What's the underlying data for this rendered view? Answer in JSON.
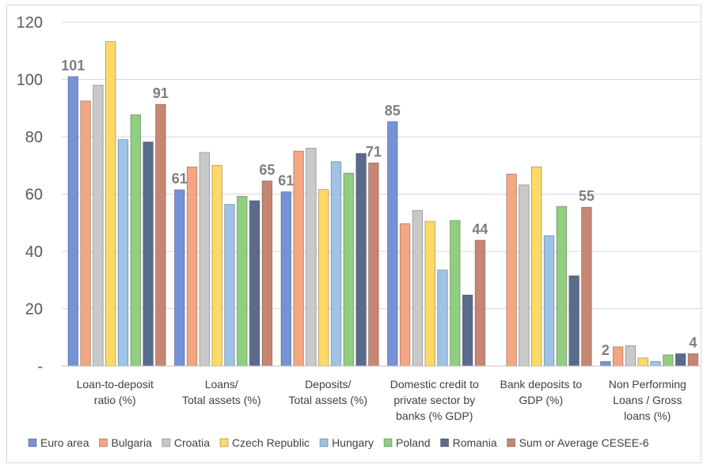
{
  "chart_data": {
    "type": "bar",
    "title": "",
    "xlabel": "",
    "ylabel": "",
    "ylim": [
      0,
      120
    ],
    "ytick_values": [
      0,
      20,
      40,
      60,
      80,
      100,
      120
    ],
    "ytick_labels": [
      "-",
      "20",
      "40",
      "60",
      "80",
      "100",
      "120"
    ],
    "grid": "horizontal",
    "legend_position": "bottom",
    "categories": [
      [
        "Loan-to-deposit",
        "ratio (%)"
      ],
      [
        "Loans/",
        "Total assets (%)"
      ],
      [
        "Deposits/",
        "Total assets (%)"
      ],
      [
        "Domestic credit to",
        "private sector by",
        "banks (% GDP)"
      ],
      [
        "Bank deposits to",
        "GDP (%)"
      ],
      [
        "Non Performing",
        "Loans / Gross",
        "loans (%)"
      ]
    ],
    "series": [
      {
        "name": "Euro area",
        "color": "#7592d6",
        "values": [
          101,
          61.5,
          60.8,
          85.3,
          null,
          1.6
        ]
      },
      {
        "name": "Bulgaria",
        "color": "#f4a582",
        "values": [
          92.5,
          69.5,
          75,
          49.7,
          67,
          6.7
        ]
      },
      {
        "name": "Croatia",
        "color": "#c9c9c9",
        "values": [
          98,
          74.5,
          76,
          54.3,
          63.2,
          7.1
        ]
      },
      {
        "name": "Czech Republic",
        "color": "#ffd966",
        "values": [
          113.2,
          70,
          61.6,
          50.5,
          69.5,
          2.8
        ]
      },
      {
        "name": "Hungary",
        "color": "#9dc3e6",
        "values": [
          79,
          56.4,
          71.3,
          33.5,
          45.5,
          1.6
        ]
      },
      {
        "name": "Poland",
        "color": "#8fcf7f",
        "values": [
          87.7,
          59.2,
          67.3,
          50.8,
          55.7,
          3.9
        ]
      },
      {
        "name": "Romania",
        "color": "#5a6b8c",
        "values": [
          78.2,
          57.7,
          74.2,
          24.8,
          31.5,
          4.3
        ]
      },
      {
        "name": "Sum or Average CESEE-6",
        "color": "#c68672",
        "values": [
          91.3,
          64.6,
          70.9,
          43.9,
          55.4,
          4.3
        ]
      }
    ],
    "data_labels": [
      {
        "category": 0,
        "series": 0,
        "text": "101"
      },
      {
        "category": 0,
        "series": 7,
        "text": "91"
      },
      {
        "category": 1,
        "series": 0,
        "text": "61"
      },
      {
        "category": 1,
        "series": 7,
        "text": "65"
      },
      {
        "category": 2,
        "series": 0,
        "text": "61"
      },
      {
        "category": 2,
        "series": 7,
        "text": "71"
      },
      {
        "category": 3,
        "series": 0,
        "text": "85"
      },
      {
        "category": 3,
        "series": 7,
        "text": "44"
      },
      {
        "category": 4,
        "series": 7,
        "text": "55"
      },
      {
        "category": 5,
        "series": 0,
        "text": "2"
      },
      {
        "category": 5,
        "series": 7,
        "text": "4"
      }
    ]
  }
}
